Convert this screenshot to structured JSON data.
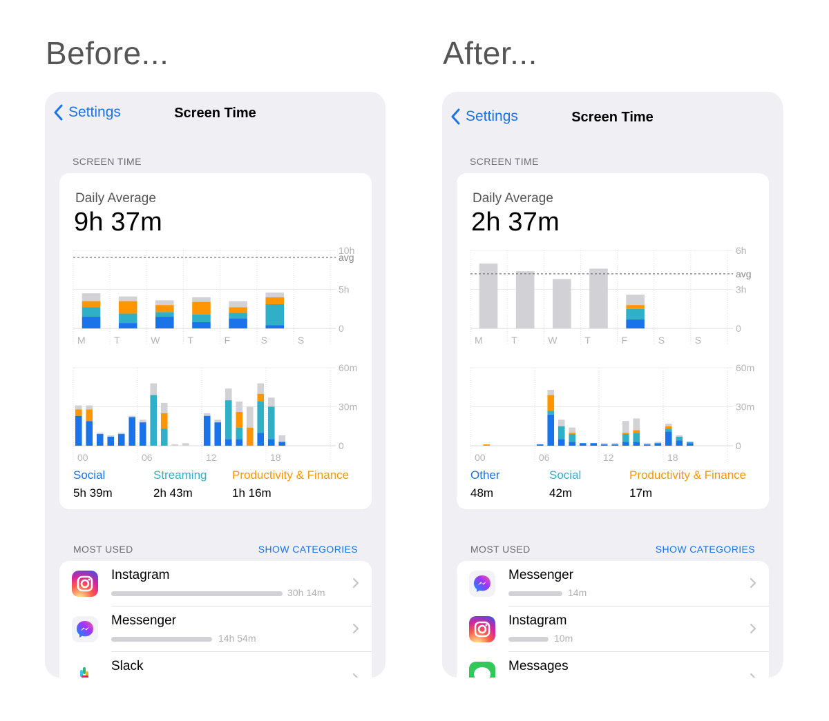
{
  "headings": {
    "before": "Before...",
    "after": "After..."
  },
  "before": {
    "nav": {
      "back_label": "Settings",
      "title": "Screen Time"
    },
    "section_label": "SCREEN TIME",
    "daily_label": "Daily Average",
    "daily_value": "9h 37m",
    "legend": [
      {
        "name": "Social",
        "value": "5h 39m",
        "color": "#1a73e8"
      },
      {
        "name": "Streaming",
        "value": "2h 43m",
        "color": "#30b0c7"
      },
      {
        "name": "Productivity & Finance",
        "value": "1h 16m",
        "color": "#ff9500"
      }
    ],
    "most_used_label": "MOST USED",
    "show_categories_label": "SHOW CATEGORIES",
    "apps": [
      {
        "name": "Instagram",
        "time": "30h 14m",
        "icon": "instagram-icon",
        "fraction": 1.0
      },
      {
        "name": "Messenger",
        "time": "14h 54m",
        "icon": "messenger-icon",
        "fraction": 0.49
      },
      {
        "name": "Slack",
        "time": "",
        "icon": "slack-icon",
        "fraction": 0
      }
    ]
  },
  "after": {
    "nav": {
      "back_label": "Settings",
      "title": "Screen Time"
    },
    "section_label": "SCREEN TIME",
    "daily_label": "Daily Average",
    "daily_value": "2h 37m",
    "legend": [
      {
        "name": "Other",
        "value": "48m",
        "color": "#1a73e8"
      },
      {
        "name": "Social",
        "value": "42m",
        "color": "#30b0c7"
      },
      {
        "name": "Productivity & Finance",
        "value": "17m",
        "color": "#ff9500"
      }
    ],
    "most_used_label": "MOST USED",
    "show_categories_label": "SHOW CATEGORIES",
    "apps": [
      {
        "name": "Messenger",
        "time": "14m",
        "icon": "messenger-icon",
        "fraction": 0.3
      },
      {
        "name": "Instagram",
        "time": "10m",
        "icon": "instagram-icon",
        "fraction": 0.22
      },
      {
        "name": "Messages",
        "time": "",
        "icon": "messages-icon",
        "fraction": 0
      }
    ]
  },
  "colors": {
    "social": "#1a73e8",
    "streaming": "#30b0c7",
    "productivity": "#ff9500",
    "other": "#d1d1d6",
    "accent": "#1a73e8"
  },
  "chart_data": [
    {
      "type": "bar",
      "panel": "before-weekly",
      "categories": [
        "M",
        "T",
        "W",
        "T",
        "F",
        "S",
        "S"
      ],
      "series": [
        {
          "name": "Social",
          "values": [
            1.5,
            0.7,
            1.5,
            0.8,
            1.3,
            0.4,
            0
          ]
        },
        {
          "name": "Streaming",
          "values": [
            1.2,
            1.2,
            0.6,
            1.0,
            0.7,
            2.7,
            0
          ]
        },
        {
          "name": "Productivity & Finance",
          "values": [
            0.8,
            1.6,
            0.9,
            1.6,
            0.7,
            0.9,
            0
          ]
        },
        {
          "series_key": "other",
          "values": [
            1.0,
            0.6,
            0.6,
            0.6,
            0.8,
            0.6,
            0
          ]
        }
      ],
      "ylim": [
        0,
        10
      ],
      "yticks": [
        "10h",
        "5h",
        "0"
      ],
      "average": 9.1,
      "average_label": "avg"
    },
    {
      "type": "bar",
      "panel": "before-hourly",
      "x": [
        0,
        1,
        2,
        3,
        4,
        5,
        6,
        7,
        8,
        9,
        10,
        11,
        12,
        13,
        14,
        15,
        16,
        17,
        18,
        19,
        20,
        21,
        22,
        23
      ],
      "xticks": [
        "00",
        "06",
        "12",
        "18"
      ],
      "series": [
        {
          "name": "Social",
          "values": [
            23,
            19,
            9,
            7,
            9,
            22,
            18,
            0,
            0,
            0,
            0,
            0,
            23,
            18,
            5,
            5,
            0,
            10,
            5,
            3,
            0,
            0,
            0,
            0
          ]
        },
        {
          "name": "Streaming",
          "values": [
            0,
            0,
            0,
            0,
            0,
            0,
            0,
            39,
            13,
            0,
            0,
            0,
            0,
            0,
            30,
            9,
            0,
            24,
            25,
            0,
            0,
            0,
            0,
            0
          ]
        },
        {
          "name": "Productivity & Finance",
          "values": [
            5,
            9,
            0,
            0,
            0,
            0,
            0,
            0,
            12,
            0,
            0,
            0,
            0,
            0,
            0,
            12,
            14,
            6,
            0,
            0,
            0,
            0,
            0,
            0
          ]
        },
        {
          "series_key": "other",
          "values": [
            3,
            3,
            1,
            1,
            1,
            1,
            2,
            9,
            8,
            1,
            2,
            0,
            2,
            2,
            9,
            8,
            16,
            8,
            7,
            5,
            0,
            0,
            0,
            0
          ]
        }
      ],
      "ylim": [
        0,
        60
      ],
      "yticks": [
        "60m",
        "30m",
        "0"
      ]
    },
    {
      "type": "bar",
      "panel": "after-weekly",
      "categories": [
        "M",
        "T",
        "W",
        "T",
        "F",
        "S",
        "S"
      ],
      "series": [
        {
          "name": "Other",
          "values": [
            0,
            0,
            0,
            0,
            0.7,
            0,
            0
          ]
        },
        {
          "name": "Social",
          "values": [
            0,
            0,
            0,
            0,
            0.8,
            0,
            0
          ]
        },
        {
          "name": "Productivity & Finance",
          "values": [
            0,
            0,
            0,
            0,
            0.3,
            0,
            0
          ]
        },
        {
          "series_key": "other",
          "values": [
            5.0,
            4.4,
            3.8,
            4.6,
            0.8,
            0,
            0
          ]
        }
      ],
      "ylim": [
        0,
        6
      ],
      "yticks": [
        "6h",
        "3h",
        "0"
      ],
      "average": 4.2,
      "average_label": "avg"
    },
    {
      "type": "bar",
      "panel": "after-hourly",
      "x": [
        0,
        1,
        2,
        3,
        4,
        5,
        6,
        7,
        8,
        9,
        10,
        11,
        12,
        13,
        14,
        15,
        16,
        17,
        18,
        19,
        20,
        21,
        22,
        23
      ],
      "xticks": [
        "00",
        "06",
        "12",
        "18"
      ],
      "series": [
        {
          "name": "Other",
          "values": [
            0,
            0,
            0,
            0,
            0,
            0,
            1,
            24,
            5,
            3,
            2,
            2,
            1,
            1,
            3,
            3,
            1,
            2,
            11,
            4,
            2,
            0,
            0,
            0
          ]
        },
        {
          "name": "Social",
          "values": [
            0,
            0,
            0,
            0,
            0,
            0,
            0,
            3,
            10,
            6,
            0,
            0,
            0,
            0,
            6,
            7,
            0,
            0,
            2,
            3,
            1,
            0,
            0,
            0
          ]
        },
        {
          "name": "Productivity & Finance",
          "values": [
            0,
            1,
            0,
            0,
            0,
            0,
            0,
            12,
            0,
            1,
            0,
            0,
            0,
            0,
            1,
            2,
            0,
            0,
            2,
            0,
            0,
            0,
            0,
            0
          ]
        },
        {
          "series_key": "other",
          "values": [
            0,
            0,
            0,
            0,
            0,
            0,
            0,
            4,
            5,
            4,
            0,
            0,
            1,
            1,
            9,
            9,
            1,
            1,
            2,
            1,
            0,
            0,
            0,
            0
          ]
        }
      ],
      "ylim": [
        0,
        60
      ],
      "yticks": [
        "60m",
        "30m",
        "0"
      ]
    }
  ]
}
